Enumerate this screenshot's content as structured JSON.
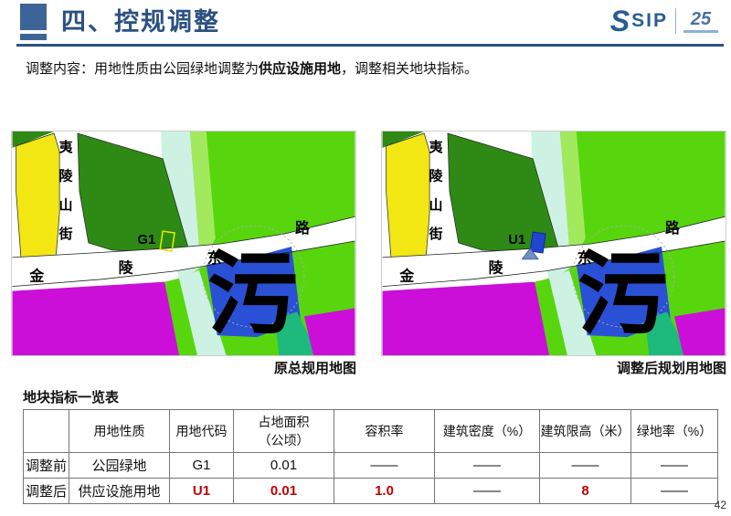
{
  "header": {
    "title": "四、控规调整",
    "logo": {
      "s": "S",
      "name": "SIP",
      "anniversary": "25"
    }
  },
  "intro": {
    "prefix": "调整内容：用地性质由公园绿地调整为",
    "highlight": "供应设施用地",
    "suffix": "，调整相关地块指标。"
  },
  "maps": {
    "street_label": [
      "夷",
      "陵",
      "山",
      "街"
    ],
    "road_label": [
      "金",
      "陵",
      "东",
      "路"
    ],
    "big_label": "污",
    "left": {
      "caption": "原总规用地图",
      "marker": {
        "label": "G1",
        "type": "outline"
      }
    },
    "right": {
      "caption": "调整后规划用地图",
      "marker": {
        "label": "U1",
        "type": "filled"
      }
    },
    "colors": {
      "yellow": "#f2e713",
      "dark_green": "#2e8a14",
      "bright_green": "#57d60e",
      "light_green": "#a2e95e",
      "canal_cyan": "#cdf2e4",
      "magenta": "#cb0fd8",
      "water_blue": "#2a50d5",
      "teal": "#1eb97d",
      "road_white": "#ffffff",
      "marker_outline": "#d9ee00",
      "marker_fill": "#2145d2"
    }
  },
  "table": {
    "title": "地块指标一览表",
    "columns": [
      "",
      "用地性质",
      "用地代码",
      "占地面积\n（公顷）",
      "容积率",
      "建筑密度（%）",
      "建筑限高（米）",
      "绿地率（%）"
    ],
    "rows": [
      {
        "label": "调整前",
        "values": [
          {
            "t": "公园绿地"
          },
          {
            "t": "G1"
          },
          {
            "t": "0.01"
          },
          {
            "t": "——"
          },
          {
            "t": "——"
          },
          {
            "t": "——"
          },
          {
            "t": "——"
          }
        ]
      },
      {
        "label": "调整后",
        "values": [
          {
            "t": "供应设施用地"
          },
          {
            "t": "U1",
            "red": true
          },
          {
            "t": "0.01",
            "red": true
          },
          {
            "t": "1.0",
            "red": true
          },
          {
            "t": "——"
          },
          {
            "t": "8",
            "red": true
          },
          {
            "t": "——"
          }
        ]
      }
    ]
  },
  "page_number": "42",
  "theme": {
    "title_blue": "#2b5181",
    "accent_red": "#c00000"
  }
}
